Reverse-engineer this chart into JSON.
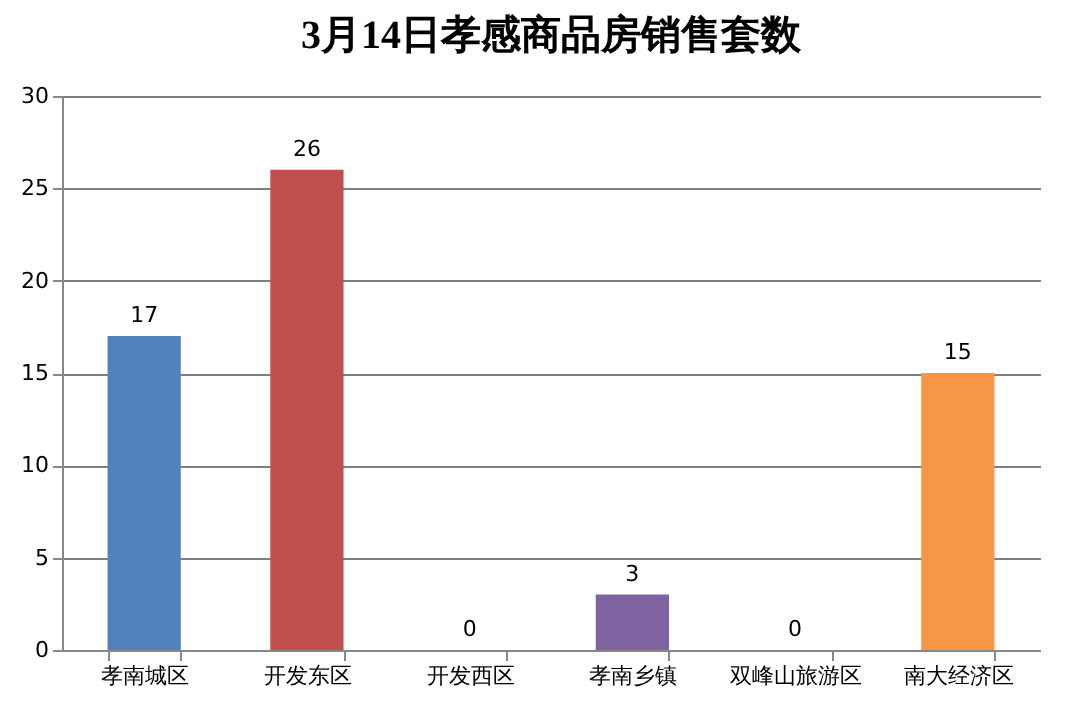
{
  "chart_data": {
    "type": "bar",
    "title": "3月14日孝感商品房销售套数",
    "categories": [
      "孝南城区",
      "开发东区",
      "开发西区",
      "孝南乡镇",
      "双峰山旅游区",
      "南大经济区"
    ],
    "values": [
      17,
      26,
      0,
      3,
      0,
      15
    ],
    "colors": [
      "#4f81bd",
      "#c0504d",
      "#9bbb59",
      "#8064a2",
      "#4bacc6",
      "#f79646"
    ],
    "ylim": [
      0,
      30
    ],
    "yticks": [
      0,
      5,
      10,
      15,
      20,
      25,
      30
    ],
    "grid": "y",
    "data_labels": true
  }
}
